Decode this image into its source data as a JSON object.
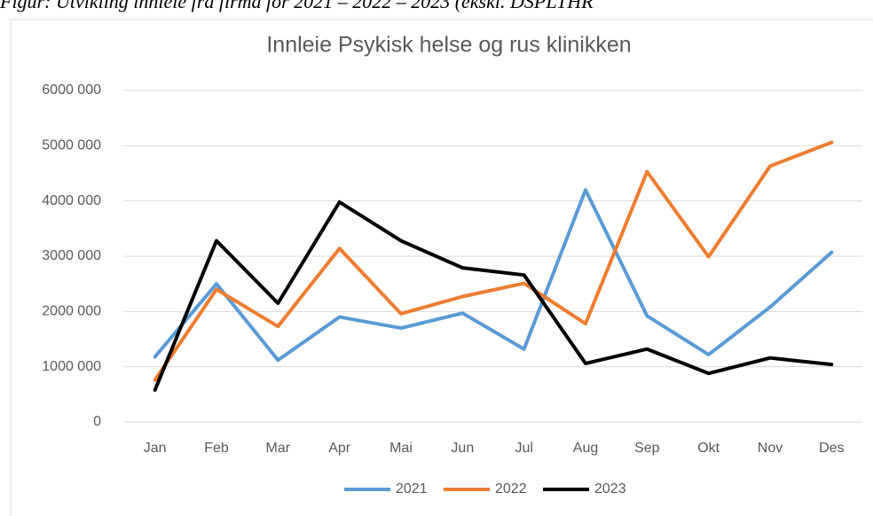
{
  "caption": "Figur: Utvikling innleie fra firma for 2021 – 2022 – 2023 (ekskl. DSPLTHR",
  "chart_data": {
    "type": "line",
    "title": "Innleie Psykisk helse og rus klinikken",
    "categories": [
      "Jan",
      "Feb",
      "Mar",
      "Apr",
      "Mai",
      "Jun",
      "Jul",
      "Aug",
      "Sep",
      "Okt",
      "Nov",
      "Des"
    ],
    "series": [
      {
        "name": "2021",
        "color": "#5b9bd5",
        "values": [
          1180000,
          2500000,
          1120000,
          1900000,
          1700000,
          1970000,
          1320000,
          4200000,
          1920000,
          1220000,
          2080000,
          3070000
        ]
      },
      {
        "name": "2022",
        "color": "#ed7d31",
        "values": [
          760000,
          2400000,
          1730000,
          3140000,
          1960000,
          2270000,
          2510000,
          1780000,
          4530000,
          2990000,
          4630000,
          5060000
        ]
      },
      {
        "name": "2023",
        "color": "#000000",
        "values": [
          580000,
          3280000,
          2150000,
          3980000,
          3280000,
          2790000,
          2660000,
          1060000,
          1320000,
          880000,
          1160000,
          1040000
        ]
      }
    ],
    "ylim": [
      0,
      6000000
    ],
    "yticks": [
      0,
      {
        "value": 1000000,
        "label": "1000 000"
      },
      {
        "value": 2000000,
        "label": "2000 000"
      },
      {
        "value": 3000000,
        "label": "3000 000"
      },
      {
        "value": 4000000,
        "label": "4000 000"
      },
      {
        "value": 5000000,
        "label": "5000 000"
      },
      {
        "value": 6000000,
        "label": "6000 000"
      }
    ],
    "grid": true,
    "legend": "bottom"
  }
}
